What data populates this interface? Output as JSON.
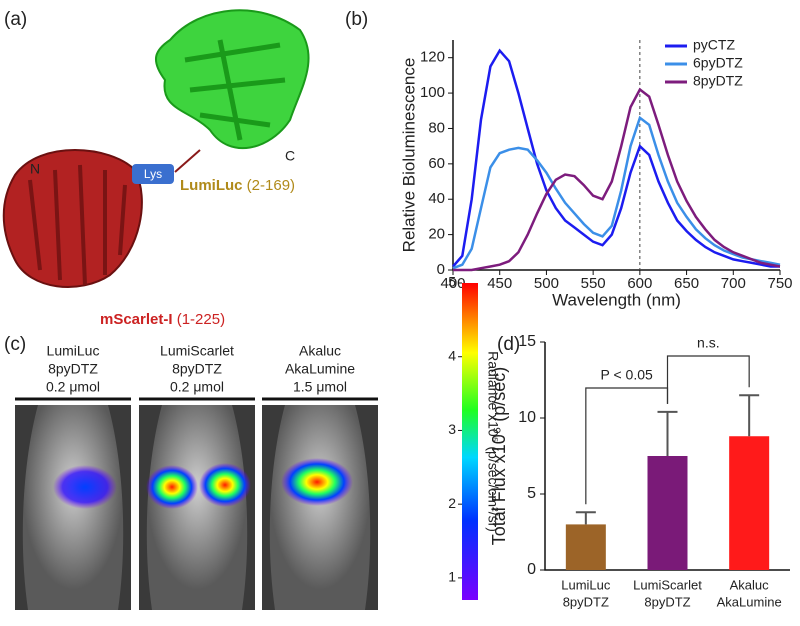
{
  "panel_a": {
    "label": "(a)",
    "n_term": "N",
    "c_term": "C",
    "linker": "Lys",
    "domains": [
      {
        "name": "LumiLuc",
        "range": "(2-169)",
        "color": "#b08a1a"
      },
      {
        "name": "mScarlet-I",
        "range": "(1-225)",
        "color": "#cc2222"
      }
    ]
  },
  "panel_c": {
    "label": "(c)",
    "groups": [
      [
        "LumiLuc",
        "8pyDTZ",
        "0.2 μmol"
      ],
      [
        "LumiScarlet",
        "8pyDTZ",
        "0.2 μmol"
      ],
      [
        "Akaluc",
        "AkaLumine",
        "1.5 μmol"
      ]
    ]
  },
  "chart_data": [
    {
      "type": "line",
      "panel": "(b)",
      "x_label": "Wavelength (nm)",
      "y_label": "Relative Bioluminescence",
      "x": [
        400,
        410,
        420,
        430,
        440,
        450,
        460,
        470,
        480,
        490,
        500,
        510,
        520,
        530,
        540,
        550,
        560,
        570,
        580,
        590,
        600,
        610,
        620,
        630,
        640,
        650,
        660,
        670,
        680,
        690,
        700,
        710,
        720,
        730,
        740,
        750
      ],
      "series": [
        {
          "name": "pyCTZ",
          "color": "#1c1cf0",
          "values": [
            2,
            8,
            40,
            85,
            115,
            124,
            118,
            100,
            80,
            60,
            45,
            35,
            28,
            24,
            20,
            16,
            14,
            20,
            35,
            55,
            70,
            65,
            50,
            38,
            28,
            22,
            17,
            13,
            10,
            8,
            6,
            5,
            4,
            3,
            2,
            2
          ]
        },
        {
          "name": "6pyDTZ",
          "color": "#3b8fe8",
          "values": [
            1,
            3,
            12,
            35,
            58,
            66,
            68,
            69,
            68,
            62,
            55,
            46,
            38,
            32,
            26,
            21,
            19,
            25,
            45,
            70,
            86,
            82,
            65,
            50,
            38,
            30,
            23,
            18,
            14,
            11,
            9,
            7,
            6,
            5,
            4,
            3
          ]
        },
        {
          "name": "8pyDTZ",
          "color": "#7d1c7d",
          "values": [
            0,
            0,
            0,
            1,
            2,
            3,
            5,
            10,
            20,
            32,
            43,
            51,
            54,
            53,
            48,
            42,
            40,
            50,
            70,
            92,
            102,
            98,
            82,
            65,
            50,
            39,
            30,
            23,
            17,
            13,
            10,
            8,
            6,
            4,
            3,
            2
          ]
        }
      ],
      "vline": 600,
      "xlim": [
        400,
        750
      ],
      "xticks": [
        400,
        450,
        500,
        550,
        600,
        650,
        700,
        750
      ],
      "ylim": [
        0,
        130
      ],
      "yticks": [
        0,
        20,
        40,
        60,
        80,
        100,
        120
      ],
      "legend": "upper right"
    },
    {
      "type": "colorbar",
      "y_label": "Radiance x10⁵ (p/sec/cm²/sr)",
      "ylim": [
        0.7,
        5
      ],
      "yticks": [
        1,
        2,
        3,
        4,
        5
      ]
    },
    {
      "type": "bar",
      "panel": "(d)",
      "y_label": "Total Flux x10⁶ (p/sec)",
      "categories": [
        [
          "LumiLuc",
          "8pyDTZ"
        ],
        [
          "LumiScarlet",
          "8pyDTZ"
        ],
        [
          "Akaluc",
          "AkaLumine"
        ]
      ],
      "values": [
        3.0,
        7.5,
        8.8
      ],
      "errors": [
        0.8,
        2.9,
        2.7
      ],
      "colors": [
        "#9c6428",
        "#7a1a78",
        "#ff1a1a"
      ],
      "ylim": [
        0,
        15
      ],
      "yticks": [
        0,
        5,
        10,
        15
      ],
      "annotations": [
        "P < 0.05",
        "n.s."
      ]
    }
  ]
}
